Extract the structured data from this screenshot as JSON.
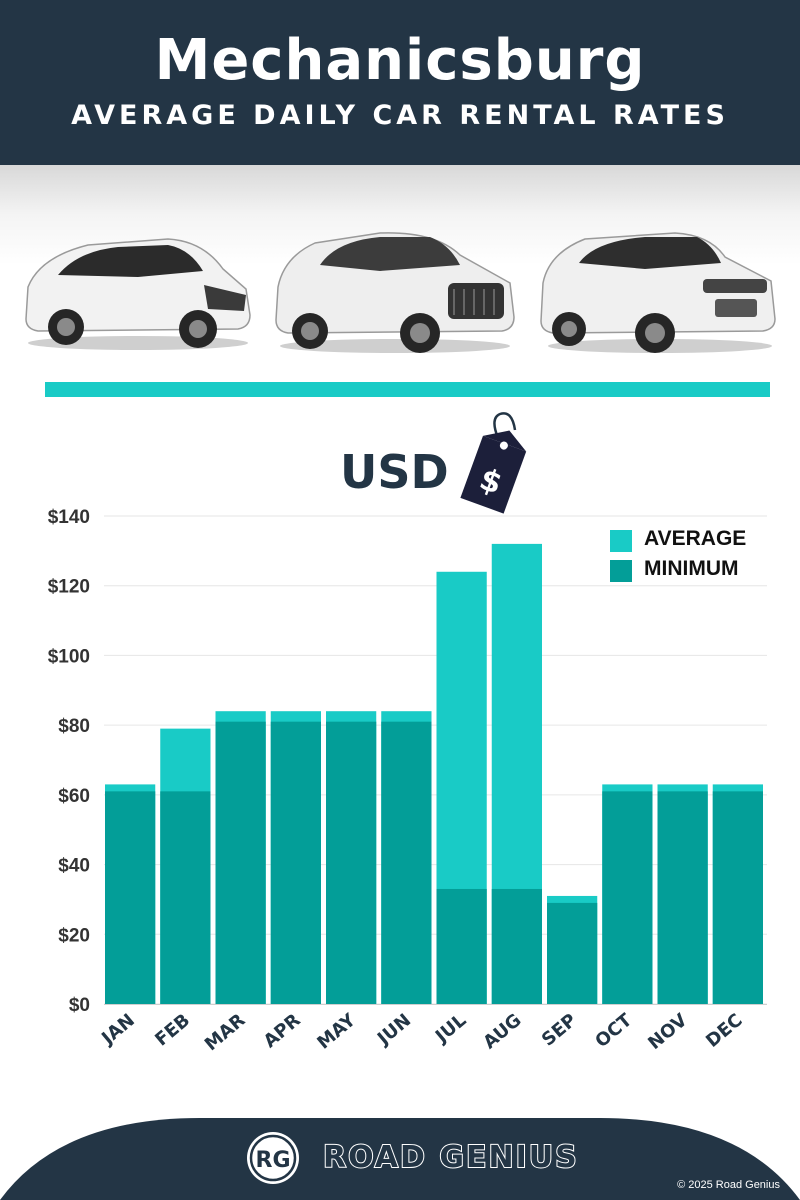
{
  "header": {
    "title": "Mechanicsburg",
    "subtitle": "AVERAGE DAILY CAR RENTAL RATES"
  },
  "images": {
    "cars": [
      "hatchback-car-image",
      "suv-car-image",
      "luxury-suv-car-image"
    ]
  },
  "currency": {
    "label": "USD",
    "tag_symbol": "$"
  },
  "legend": {
    "average": "AVERAGE",
    "minimum": "MINIMUM"
  },
  "colors": {
    "header_bg": "#233545",
    "average": "#19cbc6",
    "minimum": "#039e98",
    "accent_rule": "#19cbc6",
    "axis_text": "#333333",
    "month_text": "#233545"
  },
  "chart_data": {
    "type": "bar",
    "categories": [
      "JAN",
      "FEB",
      "MAR",
      "APR",
      "MAY",
      "JUN",
      "JUL",
      "AUG",
      "SEP",
      "OCT",
      "NOV",
      "DEC"
    ],
    "series": [
      {
        "name": "AVERAGE",
        "values": [
          63,
          79,
          84,
          84,
          84,
          84,
          124,
          132,
          31,
          63,
          63,
          63
        ]
      },
      {
        "name": "MINIMUM",
        "values": [
          61,
          61,
          81,
          81,
          81,
          81,
          33,
          33,
          29,
          61,
          61,
          61
        ]
      }
    ],
    "ylim": [
      0,
      140
    ],
    "yticks": [
      0,
      20,
      40,
      60,
      80,
      100,
      120,
      140
    ],
    "ytick_labels": [
      "$0",
      "$20",
      "$40",
      "$60",
      "$80",
      "$100",
      "$120",
      "$140"
    ],
    "grid": true,
    "legend_position": "top-right",
    "stacking": "overlay"
  },
  "footer": {
    "logo_initials": "RG",
    "brand_name": "ROAD GENIUS",
    "copyright": "© 2025 Road Genius"
  }
}
